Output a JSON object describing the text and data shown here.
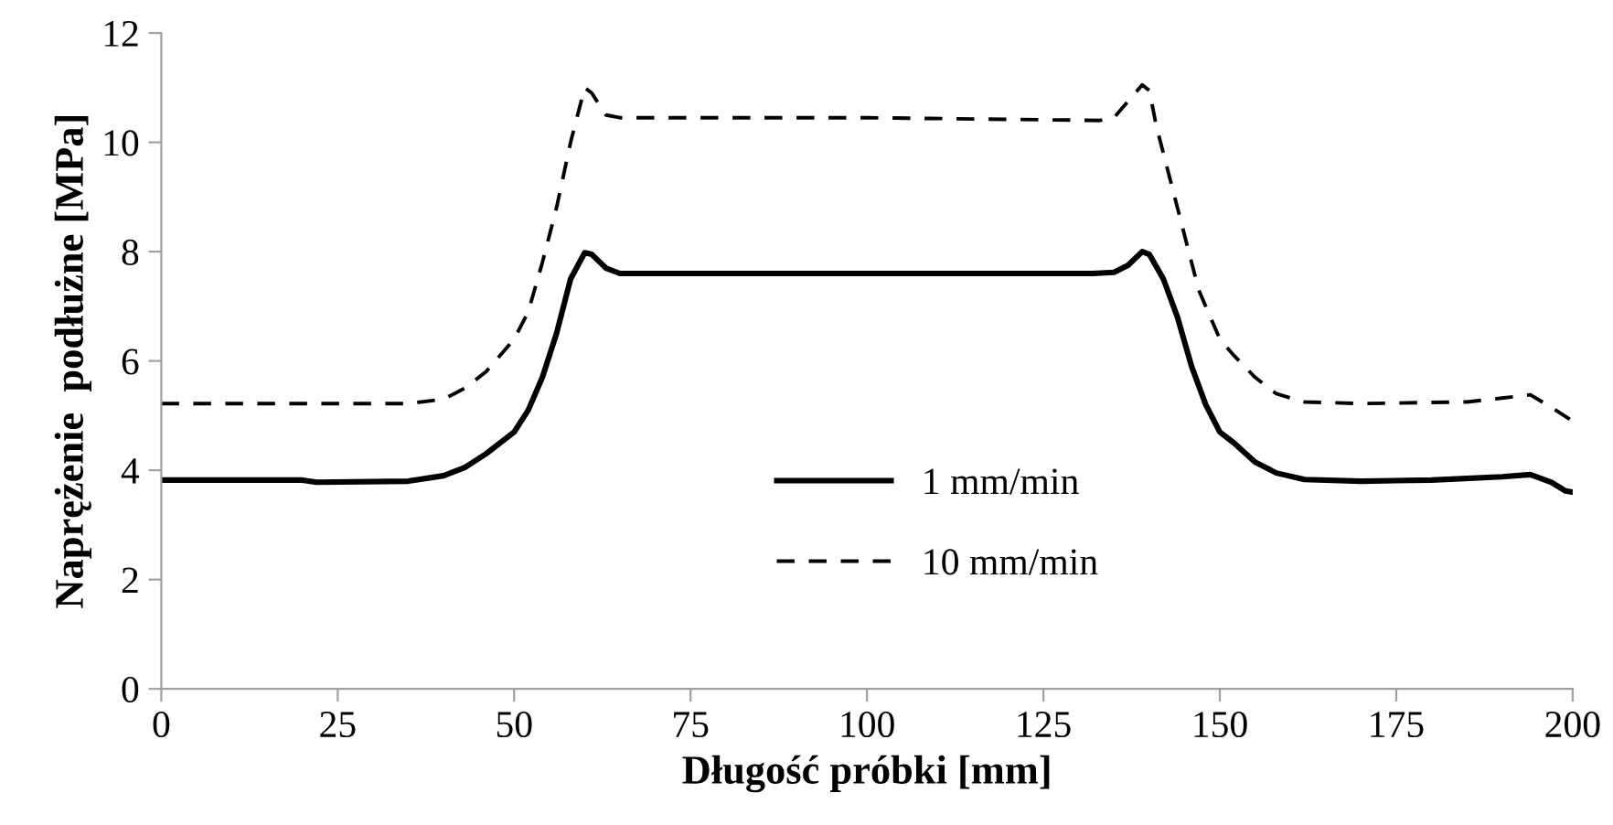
{
  "chart_data": {
    "type": "line",
    "xlabel": "Długość próbki [mm]",
    "ylabel": "Naprężenie  podłużne [MPa]",
    "xlim": [
      0,
      200
    ],
    "xticks": [
      0,
      25,
      50,
      75,
      100,
      125,
      150,
      175,
      200
    ],
    "ylim": [
      0,
      12
    ],
    "yticks": [
      0,
      2,
      4,
      6,
      8,
      10,
      12
    ],
    "grid": false,
    "legend": "center",
    "marker": "none",
    "series": [
      {
        "name": "1 mm/min",
        "color": "#000000",
        "line_style": "solid",
        "x": [
          0,
          20,
          22,
          35,
          40,
          43,
          46,
          50,
          52,
          54,
          56,
          58,
          60,
          61,
          63,
          65,
          70,
          100,
          132,
          135,
          137,
          139,
          140,
          142,
          144,
          146,
          148,
          150,
          152,
          155,
          158,
          162,
          170,
          180,
          190,
          194,
          197,
          199,
          200
        ],
        "values": [
          3.82,
          3.82,
          3.78,
          3.8,
          3.9,
          4.05,
          4.3,
          4.7,
          5.1,
          5.7,
          6.5,
          7.5,
          7.98,
          7.95,
          7.7,
          7.6,
          7.6,
          7.6,
          7.6,
          7.62,
          7.75,
          8.0,
          7.95,
          7.5,
          6.8,
          5.9,
          5.2,
          4.7,
          4.5,
          4.15,
          3.95,
          3.83,
          3.8,
          3.82,
          3.88,
          3.92,
          3.78,
          3.62,
          3.6
        ]
      },
      {
        "name": "10 mm/min",
        "color": "#000000",
        "line_style": "dashed",
        "x": [
          0,
          35,
          40,
          43,
          46,
          50,
          52,
          54,
          56,
          58,
          60,
          61,
          63,
          65,
          75,
          100,
          133,
          135,
          137,
          139,
          140,
          141,
          143,
          145,
          147,
          150,
          152,
          155,
          158,
          162,
          170,
          185,
          190,
          194,
          197,
          200
        ],
        "values": [
          5.22,
          5.22,
          5.3,
          5.5,
          5.8,
          6.4,
          6.9,
          7.8,
          8.8,
          10.0,
          11.0,
          10.9,
          10.5,
          10.45,
          10.45,
          10.45,
          10.4,
          10.45,
          10.75,
          11.05,
          10.95,
          10.3,
          9.3,
          8.3,
          7.3,
          6.4,
          6.1,
          5.7,
          5.4,
          5.25,
          5.22,
          5.25,
          5.32,
          5.38,
          5.15,
          4.9
        ]
      }
    ]
  }
}
